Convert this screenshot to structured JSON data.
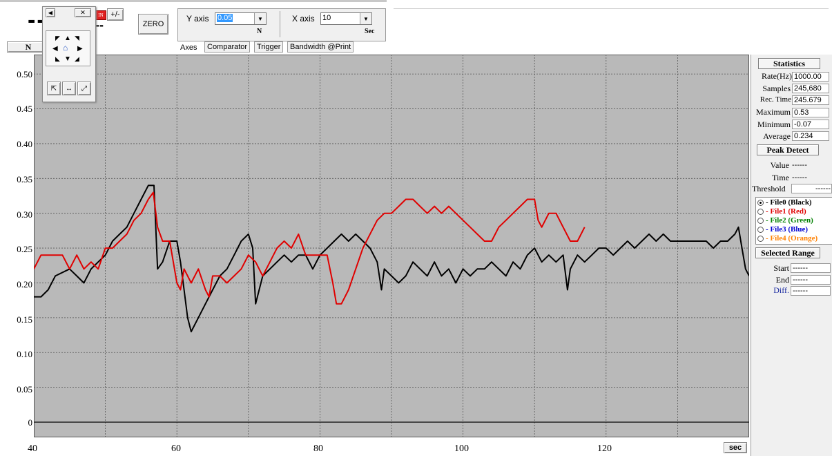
{
  "toolbar": {
    "readout_main": "--",
    "readout_small": "--",
    "plus_minus": "+/-",
    "zero_button": "ZERO",
    "y_axis_label": "Y axis",
    "y_axis_value": "0.05",
    "y_unit": "N",
    "x_axis_label": "X axis",
    "x_axis_value": "10",
    "x_unit": "Sec",
    "unit_box": "N"
  },
  "tabs": [
    "Axes",
    "Comparator",
    "Trigger",
    "Bandwidth @Print"
  ],
  "plot": {
    "y_ticks": [
      "0.50",
      "0.45",
      "0.40",
      "0.35",
      "0.30",
      "0.25",
      "0.20",
      "0.15",
      "0.10",
      "0.05",
      "0"
    ],
    "x_ticks": [
      "40",
      "60",
      "80",
      "100",
      "120"
    ],
    "x_unit_button": "sec"
  },
  "statistics": {
    "header": "Statistics",
    "rows": [
      {
        "label": "Rate(Hz)",
        "value": "1000.00"
      },
      {
        "label": "Samples",
        "value": "245,680"
      },
      {
        "label": "Rec. Time",
        "value": "245.679"
      },
      {
        "label": "Maximum",
        "value": "0.53"
      },
      {
        "label": "Minimum",
        "value": "-0.07"
      },
      {
        "label": "Average",
        "value": "0.234"
      }
    ]
  },
  "peak_detect": {
    "header": "Peak Detect",
    "value_label": "Value",
    "value": "------",
    "time_label": "Time",
    "time": "------",
    "threshold_label": "Threshold",
    "threshold": "------"
  },
  "files": [
    {
      "label": "- File0 (Black)",
      "color": "#000000",
      "selected": true
    },
    {
      "label": "- File1 (Red)",
      "color": "#e00000",
      "selected": false
    },
    {
      "label": "- File2 (Green)",
      "color": "#008000",
      "selected": false
    },
    {
      "label": "- File3 (Blue)",
      "color": "#0000d0",
      "selected": false
    },
    {
      "label": "- File4 (Orange)",
      "color": "#ff8000",
      "selected": false
    }
  ],
  "selected_range": {
    "header": "Selected Range",
    "start_label": "Start",
    "start": "------",
    "end_label": "End",
    "end": "------",
    "diff_label": "Diff.",
    "diff": "------"
  },
  "chart_data": {
    "type": "line",
    "xlim": [
      40,
      140
    ],
    "ylim": [
      0,
      0.52
    ],
    "grid": true,
    "series": [
      {
        "name": "File0 (Black)",
        "color": "#000000",
        "points": [
          [
            40,
            0.18
          ],
          [
            41,
            0.18
          ],
          [
            42,
            0.19
          ],
          [
            43,
            0.21
          ],
          [
            45,
            0.22
          ],
          [
            46,
            0.21
          ],
          [
            47,
            0.2
          ],
          [
            48,
            0.22
          ],
          [
            49,
            0.23
          ],
          [
            50,
            0.24
          ],
          [
            51,
            0.26
          ],
          [
            52,
            0.27
          ],
          [
            53,
            0.28
          ],
          [
            54,
            0.3
          ],
          [
            55,
            0.32
          ],
          [
            56,
            0.34
          ],
          [
            56.8,
            0.34
          ],
          [
            57.3,
            0.22
          ],
          [
            58,
            0.23
          ],
          [
            59,
            0.26
          ],
          [
            60,
            0.26
          ],
          [
            60.5,
            0.23
          ],
          [
            61,
            0.19
          ],
          [
            61.5,
            0.15
          ],
          [
            62,
            0.13
          ],
          [
            63,
            0.15
          ],
          [
            64,
            0.17
          ],
          [
            65,
            0.19
          ],
          [
            66,
            0.21
          ],
          [
            67,
            0.22
          ],
          [
            68,
            0.24
          ],
          [
            69,
            0.26
          ],
          [
            70,
            0.27
          ],
          [
            70.6,
            0.25
          ],
          [
            71,
            0.17
          ],
          [
            72,
            0.21
          ],
          [
            73,
            0.22
          ],
          [
            74,
            0.23
          ],
          [
            75,
            0.24
          ],
          [
            76,
            0.23
          ],
          [
            77,
            0.24
          ],
          [
            78,
            0.24
          ],
          [
            79,
            0.22
          ],
          [
            80,
            0.24
          ],
          [
            81,
            0.25
          ],
          [
            82,
            0.26
          ],
          [
            83,
            0.27
          ],
          [
            84,
            0.26
          ],
          [
            85,
            0.27
          ],
          [
            86,
            0.26
          ],
          [
            87,
            0.25
          ],
          [
            88,
            0.23
          ],
          [
            88.6,
            0.19
          ],
          [
            89,
            0.22
          ],
          [
            90,
            0.21
          ],
          [
            91,
            0.2
          ],
          [
            92,
            0.21
          ],
          [
            93,
            0.23
          ],
          [
            94,
            0.22
          ],
          [
            95,
            0.21
          ],
          [
            96,
            0.23
          ],
          [
            97,
            0.21
          ],
          [
            98,
            0.22
          ],
          [
            99,
            0.2
          ],
          [
            100,
            0.22
          ],
          [
            101,
            0.21
          ],
          [
            102,
            0.22
          ],
          [
            103,
            0.22
          ],
          [
            104,
            0.23
          ],
          [
            105,
            0.22
          ],
          [
            106,
            0.21
          ],
          [
            107,
            0.23
          ],
          [
            108,
            0.22
          ],
          [
            109,
            0.24
          ],
          [
            110,
            0.25
          ],
          [
            111,
            0.23
          ],
          [
            112,
            0.24
          ],
          [
            113,
            0.23
          ],
          [
            114,
            0.24
          ],
          [
            114.6,
            0.19
          ],
          [
            115,
            0.22
          ],
          [
            116,
            0.24
          ],
          [
            117,
            0.23
          ],
          [
            118,
            0.24
          ],
          [
            119,
            0.25
          ],
          [
            120,
            0.25
          ],
          [
            121,
            0.24
          ],
          [
            122,
            0.25
          ],
          [
            123,
            0.26
          ],
          [
            124,
            0.25
          ],
          [
            125,
            0.26
          ],
          [
            126,
            0.27
          ],
          [
            127,
            0.26
          ],
          [
            128,
            0.27
          ],
          [
            129,
            0.26
          ],
          [
            130,
            0.26
          ],
          [
            131,
            0.26
          ],
          [
            132,
            0.26
          ],
          [
            133,
            0.26
          ],
          [
            134,
            0.26
          ],
          [
            135,
            0.25
          ],
          [
            136,
            0.26
          ],
          [
            137,
            0.26
          ],
          [
            138,
            0.27
          ],
          [
            138.5,
            0.28
          ],
          [
            139,
            0.25
          ],
          [
            139.5,
            0.22
          ],
          [
            140,
            0.21
          ]
        ]
      },
      {
        "name": "File1 (Red)",
        "color": "#e00000",
        "points": [
          [
            40,
            0.22
          ],
          [
            41,
            0.24
          ],
          [
            42,
            0.24
          ],
          [
            43,
            0.24
          ],
          [
            44,
            0.24
          ],
          [
            45,
            0.22
          ],
          [
            46,
            0.24
          ],
          [
            47,
            0.22
          ],
          [
            48,
            0.23
          ],
          [
            49,
            0.22
          ],
          [
            50,
            0.25
          ],
          [
            51,
            0.25
          ],
          [
            52,
            0.26
          ],
          [
            53,
            0.27
          ],
          [
            54,
            0.29
          ],
          [
            55,
            0.3
          ],
          [
            56,
            0.32
          ],
          [
            56.7,
            0.33
          ],
          [
            57.3,
            0.28
          ],
          [
            58,
            0.26
          ],
          [
            59,
            0.26
          ],
          [
            60,
            0.2
          ],
          [
            60.5,
            0.19
          ],
          [
            61,
            0.22
          ],
          [
            62,
            0.2
          ],
          [
            63,
            0.22
          ],
          [
            64,
            0.19
          ],
          [
            64.5,
            0.18
          ],
          [
            65,
            0.21
          ],
          [
            66,
            0.21
          ],
          [
            67,
            0.2
          ],
          [
            68,
            0.21
          ],
          [
            69,
            0.22
          ],
          [
            70,
            0.24
          ],
          [
            71,
            0.23
          ],
          [
            72,
            0.21
          ],
          [
            73,
            0.23
          ],
          [
            74,
            0.25
          ],
          [
            75,
            0.26
          ],
          [
            76,
            0.25
          ],
          [
            77,
            0.27
          ],
          [
            78,
            0.24
          ],
          [
            79,
            0.24
          ],
          [
            80,
            0.24
          ],
          [
            81,
            0.24
          ],
          [
            81.8,
            0.2
          ],
          [
            82.3,
            0.17
          ],
          [
            83,
            0.17
          ],
          [
            84,
            0.19
          ],
          [
            85,
            0.22
          ],
          [
            86,
            0.25
          ],
          [
            87,
            0.27
          ],
          [
            88,
            0.29
          ],
          [
            89,
            0.3
          ],
          [
            90,
            0.3
          ],
          [
            91,
            0.31
          ],
          [
            92,
            0.32
          ],
          [
            93,
            0.32
          ],
          [
            94,
            0.31
          ],
          [
            95,
            0.3
          ],
          [
            96,
            0.31
          ],
          [
            97,
            0.3
          ],
          [
            98,
            0.31
          ],
          [
            99,
            0.3
          ],
          [
            100,
            0.29
          ],
          [
            101,
            0.28
          ],
          [
            102,
            0.27
          ],
          [
            103,
            0.26
          ],
          [
            104,
            0.26
          ],
          [
            105,
            0.28
          ],
          [
            106,
            0.29
          ],
          [
            107,
            0.3
          ],
          [
            108,
            0.31
          ],
          [
            109,
            0.32
          ],
          [
            110,
            0.32
          ],
          [
            110.5,
            0.29
          ],
          [
            111,
            0.28
          ],
          [
            112,
            0.3
          ],
          [
            113,
            0.3
          ],
          [
            114,
            0.28
          ],
          [
            115,
            0.26
          ],
          [
            116,
            0.26
          ],
          [
            117,
            0.28
          ]
        ]
      }
    ]
  }
}
